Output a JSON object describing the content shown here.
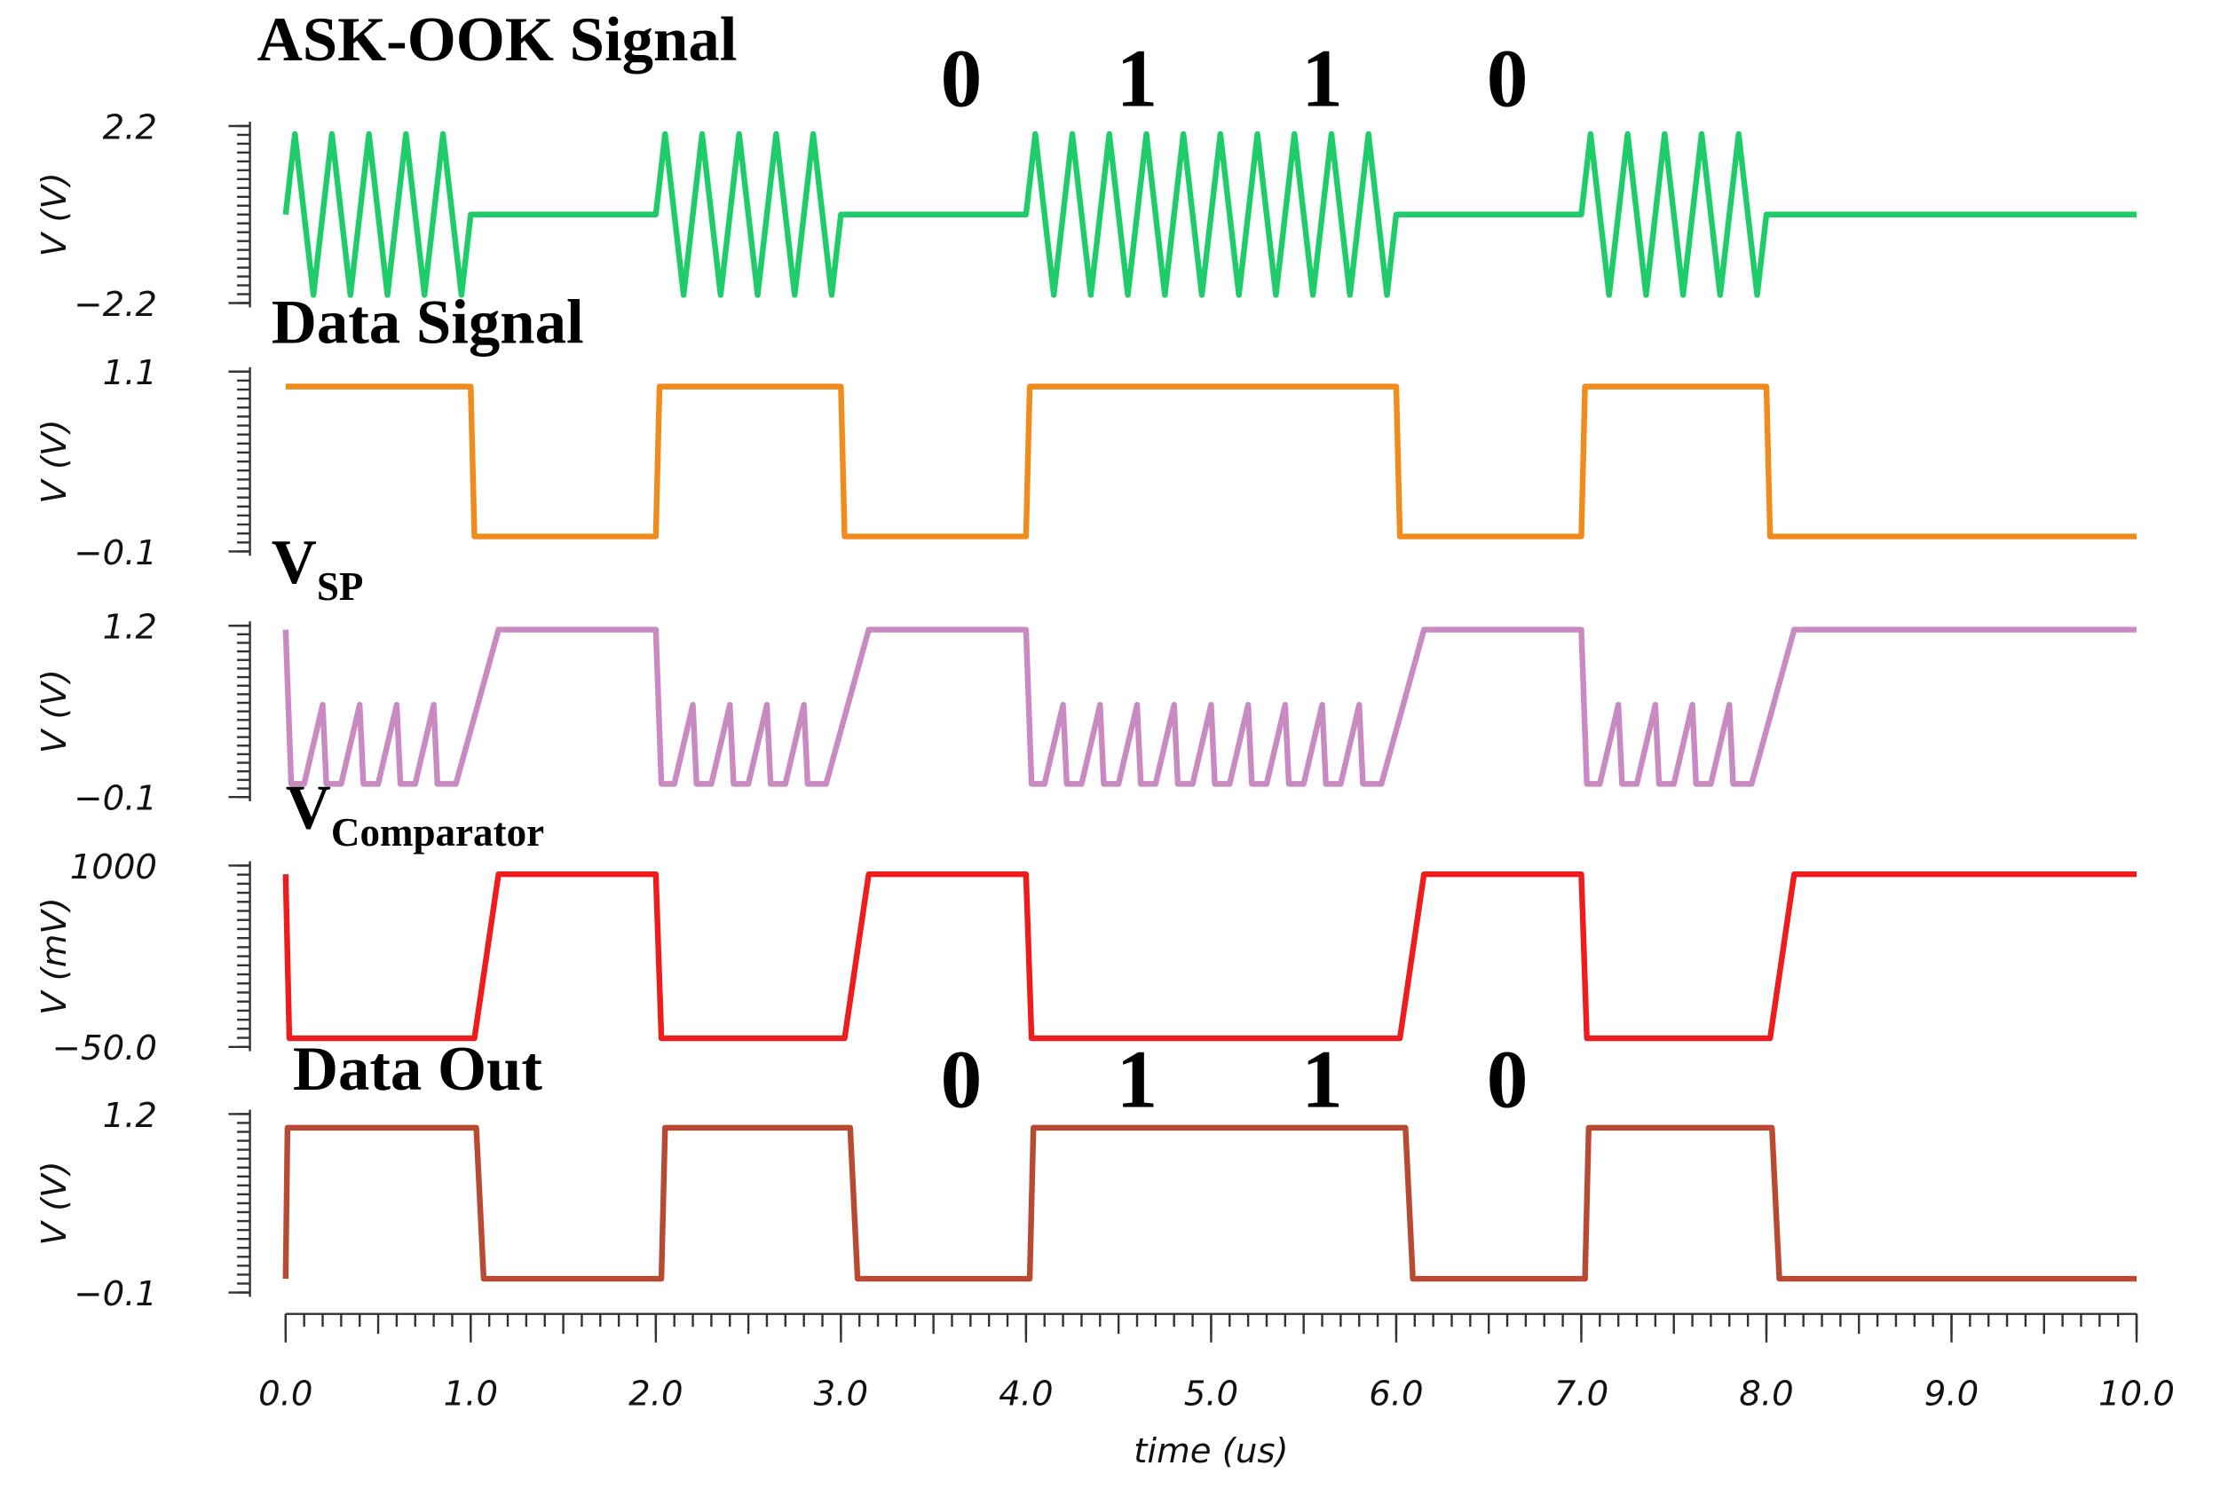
{
  "chart_data": [
    {
      "type": "line",
      "title": "ASK-OOK Signal",
      "ylabel": "V (V)",
      "xlim": [
        0,
        10
      ],
      "ylim": [
        -2.2,
        2.2
      ],
      "yticks": [
        {
          "value": -2.2,
          "label": "−2.2"
        },
        2.2
      ],
      "annotations": [
        {
          "text": "0",
          "x": 3.65
        },
        {
          "text": "1",
          "x": 4.6
        },
        {
          "text": "1",
          "x": 5.6
        },
        {
          "text": "0",
          "x": 6.6
        }
      ],
      "series": [
        {
          "color": "#1fcc6a",
          "x": [
            0,
            0.05,
            0.15,
            0.25,
            0.35,
            0.45,
            0.55,
            0.65,
            0.75,
            0.85,
            0.95,
            1,
            2,
            2.05,
            2.15,
            2.25,
            2.35,
            2.45,
            2.55,
            2.65,
            2.75,
            2.85,
            2.95,
            3,
            4,
            4.05,
            4.15,
            4.25,
            4.35,
            4.45,
            4.55,
            4.65,
            4.75,
            4.85,
            4.95,
            5.05,
            5.15,
            5.25,
            5.35,
            5.45,
            5.55,
            5.65,
            5.75,
            5.85,
            5.95,
            6,
            7,
            7.05,
            7.15,
            7.25,
            7.35,
            7.45,
            7.55,
            7.65,
            7.75,
            7.85,
            7.95,
            8,
            10
          ],
          "values": [
            0,
            2,
            -2,
            2,
            -2,
            2,
            -2,
            2,
            -2,
            2,
            -2,
            0,
            0,
            2,
            -2,
            2,
            -2,
            2,
            -2,
            2,
            -2,
            2,
            -2,
            0,
            0,
            2,
            -2,
            2,
            -2,
            2,
            -2,
            2,
            -2,
            2,
            -2,
            2,
            -2,
            2,
            -2,
            2,
            -2,
            2,
            -2,
            2,
            -2,
            0,
            0,
            2,
            -2,
            2,
            -2,
            2,
            -2,
            2,
            -2,
            2,
            -2,
            0,
            0
          ]
        }
      ]
    },
    {
      "type": "line",
      "title": "Data Signal",
      "ylabel": "V (V)",
      "xlim": [
        0,
        10
      ],
      "ylim": [
        -0.1,
        1.1
      ],
      "yticks": [
        {
          "value": -0.1,
          "label": "−0.1"
        },
        1.1
      ],
      "series": [
        {
          "color": "#f08c1e",
          "x": [
            0,
            1,
            1.02,
            2,
            2.02,
            3,
            3.02,
            4,
            4.02,
            6,
            6.02,
            7,
            7.02,
            8,
            8.02,
            10
          ],
          "values": [
            1,
            1,
            0,
            0,
            1,
            1,
            0,
            0,
            1,
            1,
            0,
            0,
            1,
            1,
            0,
            0
          ]
        }
      ]
    },
    {
      "type": "line",
      "title": "V",
      "title_sub": "SP",
      "ylabel": "V (V)",
      "xlim": [
        0,
        10
      ],
      "ylim": [
        -0.1,
        1.2
      ],
      "yticks": [
        {
          "value": -0.1,
          "label": "−0.1"
        },
        1.2
      ],
      "series": [
        {
          "color": "#c88ac0",
          "x": [
            0,
            0.03,
            0.1,
            0.2,
            0.22,
            0.3,
            0.4,
            0.42,
            0.5,
            0.6,
            0.62,
            0.7,
            0.8,
            0.82,
            0.92,
            1.15,
            2,
            2.03,
            2.1,
            2.2,
            2.22,
            2.3,
            2.4,
            2.42,
            2.5,
            2.6,
            2.62,
            2.7,
            2.8,
            2.82,
            2.92,
            3.15,
            4,
            4.03,
            4.1,
            4.2,
            4.22,
            4.3,
            4.4,
            4.42,
            4.5,
            4.6,
            4.62,
            4.7,
            4.8,
            4.82,
            4.9,
            5.0,
            5.02,
            5.1,
            5.2,
            5.22,
            5.3,
            5.4,
            5.42,
            5.5,
            5.6,
            5.62,
            5.7,
            5.8,
            5.82,
            5.92,
            6.15,
            7,
            7.03,
            7.1,
            7.2,
            7.22,
            7.3,
            7.4,
            7.42,
            7.5,
            7.6,
            7.62,
            7.7,
            7.8,
            7.82,
            7.92,
            8.15,
            10
          ],
          "values": [
            1.17,
            0,
            0,
            0.6,
            0,
            0,
            0.6,
            0,
            0,
            0.6,
            0,
            0,
            0.6,
            0,
            0,
            1.17,
            1.17,
            0,
            0,
            0.6,
            0,
            0,
            0.6,
            0,
            0,
            0.6,
            0,
            0,
            0.6,
            0,
            0,
            1.17,
            1.17,
            0,
            0,
            0.6,
            0,
            0,
            0.6,
            0,
            0,
            0.6,
            0,
            0,
            0.6,
            0,
            0,
            0.6,
            0,
            0,
            0.6,
            0,
            0,
            0.6,
            0,
            0,
            0.6,
            0,
            0,
            0.6,
            0,
            0,
            1.17,
            1.17,
            0,
            0,
            0.6,
            0,
            0,
            0.6,
            0,
            0,
            0.6,
            0,
            0,
            0.6,
            0,
            0,
            1.17,
            1.17
          ]
        }
      ]
    },
    {
      "type": "line",
      "title": "V",
      "title_sub": "Comparator",
      "ylabel": "V (mV)",
      "xlim": [
        0,
        10
      ],
      "ylim": [
        -50,
        1000
      ],
      "yticks": [
        {
          "value": -50,
          "label": "−50.0"
        },
        1000
      ],
      "series": [
        {
          "color": "#ee1c1c",
          "x": [
            0,
            0.02,
            1.02,
            1.15,
            2,
            2.03,
            3.02,
            3.15,
            4,
            4.03,
            6.02,
            6.15,
            7,
            7.03,
            8.02,
            8.15,
            10
          ],
          "values": [
            950,
            0,
            0,
            950,
            950,
            0,
            0,
            950,
            950,
            0,
            0,
            950,
            950,
            0,
            0,
            950,
            950
          ]
        }
      ]
    },
    {
      "type": "line",
      "title": "Data Out",
      "ylabel": "V (V)",
      "xlabel": "time (us)",
      "xlim": [
        0,
        10
      ],
      "ylim": [
        -0.1,
        1.2
      ],
      "yticks": [
        {
          "value": -0.1,
          "label": "−0.1"
        },
        1.2
      ],
      "xticks": [
        {
          "value": 0,
          "label": "0.0"
        },
        {
          "value": 1,
          "label": "1.0"
        },
        {
          "value": 2,
          "label": "2.0"
        },
        {
          "value": 3,
          "label": "3.0"
        },
        {
          "value": 4,
          "label": "4.0"
        },
        {
          "value": 5,
          "label": "5.0"
        },
        {
          "value": 6,
          "label": "6.0"
        },
        {
          "value": 7,
          "label": "7.0"
        },
        {
          "value": 8,
          "label": "8.0"
        },
        {
          "value": 9,
          "label": "9.0"
        },
        {
          "value": 10,
          "label": "10.0"
        }
      ],
      "annotations": [
        {
          "text": "0",
          "x": 3.65
        },
        {
          "text": "1",
          "x": 4.6
        },
        {
          "text": "1",
          "x": 5.6
        },
        {
          "text": "0",
          "x": 6.6
        }
      ],
      "series": [
        {
          "color": "#b84a32",
          "x": [
            0,
            0.01,
            1.03,
            1.07,
            2.03,
            2.05,
            3.05,
            3.09,
            4.02,
            4.04,
            6.05,
            6.09,
            7.02,
            7.04,
            8.03,
            8.07,
            10
          ],
          "values": [
            0,
            1.1,
            1.1,
            0,
            0,
            1.1,
            1.1,
            0,
            0,
            1.1,
            1.1,
            0,
            0,
            1.1,
            1.1,
            0,
            0
          ]
        }
      ]
    }
  ]
}
